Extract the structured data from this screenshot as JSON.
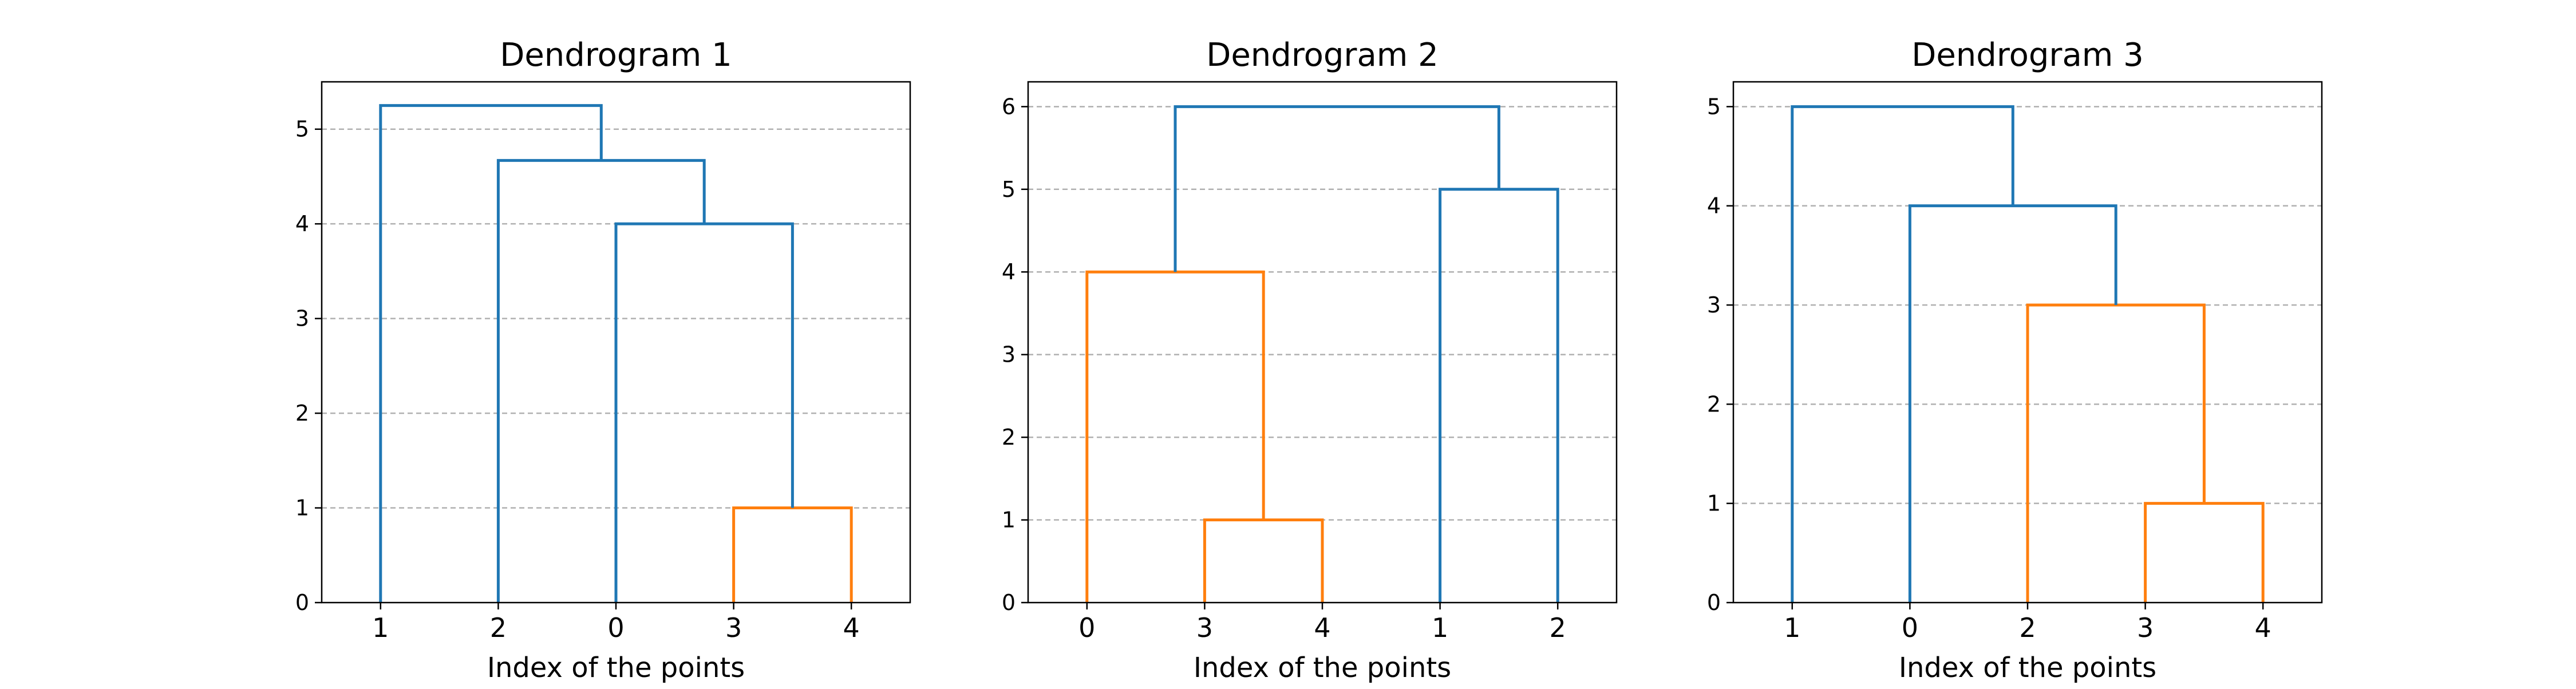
{
  "figure": {
    "link_color_above": "#1f77b4",
    "cluster_color": "#ff7f0e",
    "grid_color": "#b0b0b0"
  },
  "chart_data": [
    {
      "type": "dendrogram",
      "title": "Dendrogram 1",
      "xlabel": "Index of the points",
      "ylabel": "",
      "leaf_labels": [
        "1",
        "2",
        "0",
        "3",
        "4"
      ],
      "ylim": [
        0,
        5.5
      ],
      "yticks": [
        0,
        1,
        2,
        3,
        4,
        5
      ],
      "grid": "y",
      "links": [
        {
          "x": [
            3,
            3,
            4,
            4
          ],
          "y": [
            0,
            1,
            1,
            0
          ],
          "color": "orange"
        },
        {
          "x": [
            2,
            2,
            3.5,
            3.5
          ],
          "y": [
            0,
            4,
            4,
            1
          ],
          "color": "blue"
        },
        {
          "x": [
            1,
            1,
            2.75,
            2.75
          ],
          "y": [
            0,
            4.67,
            4.67,
            4
          ],
          "color": "blue"
        },
        {
          "x": [
            0,
            0,
            1.875,
            1.875
          ],
          "y": [
            0,
            5.25,
            5.25,
            4.67
          ],
          "color": "blue"
        }
      ]
    },
    {
      "type": "dendrogram",
      "title": "Dendrogram 2",
      "xlabel": "Index of the points",
      "ylabel": "",
      "leaf_labels": [
        "0",
        "3",
        "4",
        "1",
        "2"
      ],
      "ylim": [
        0,
        6.3
      ],
      "yticks": [
        0,
        1,
        2,
        3,
        4,
        5,
        6
      ],
      "grid": "y",
      "links": [
        {
          "x": [
            1,
            1,
            2,
            2
          ],
          "y": [
            0,
            1,
            1,
            0
          ],
          "color": "orange"
        },
        {
          "x": [
            0,
            0,
            1.5,
            1.5
          ],
          "y": [
            0,
            4,
            4,
            1
          ],
          "color": "orange"
        },
        {
          "x": [
            3,
            3,
            4,
            4
          ],
          "y": [
            0,
            5,
            5,
            0
          ],
          "color": "blue"
        },
        {
          "x": [
            0.75,
            0.75,
            3.5,
            3.5
          ],
          "y": [
            4,
            6,
            6,
            5
          ],
          "color": "blue"
        }
      ]
    },
    {
      "type": "dendrogram",
      "title": "Dendrogram 3",
      "xlabel": "Index of the points",
      "ylabel": "",
      "leaf_labels": [
        "1",
        "0",
        "2",
        "3",
        "4"
      ],
      "ylim": [
        0,
        5.25
      ],
      "yticks": [
        0,
        1,
        2,
        3,
        4,
        5
      ],
      "grid": "y",
      "links": [
        {
          "x": [
            3,
            3,
            4,
            4
          ],
          "y": [
            0,
            1,
            1,
            0
          ],
          "color": "orange"
        },
        {
          "x": [
            2,
            2,
            3.5,
            3.5
          ],
          "y": [
            0,
            3,
            3,
            1
          ],
          "color": "orange"
        },
        {
          "x": [
            1,
            1,
            2.75,
            2.75
          ],
          "y": [
            0,
            4,
            4,
            3
          ],
          "color": "blue"
        },
        {
          "x": [
            0,
            0,
            1.875,
            1.875
          ],
          "y": [
            0,
            5,
            5,
            4
          ],
          "color": "blue"
        }
      ]
    }
  ]
}
